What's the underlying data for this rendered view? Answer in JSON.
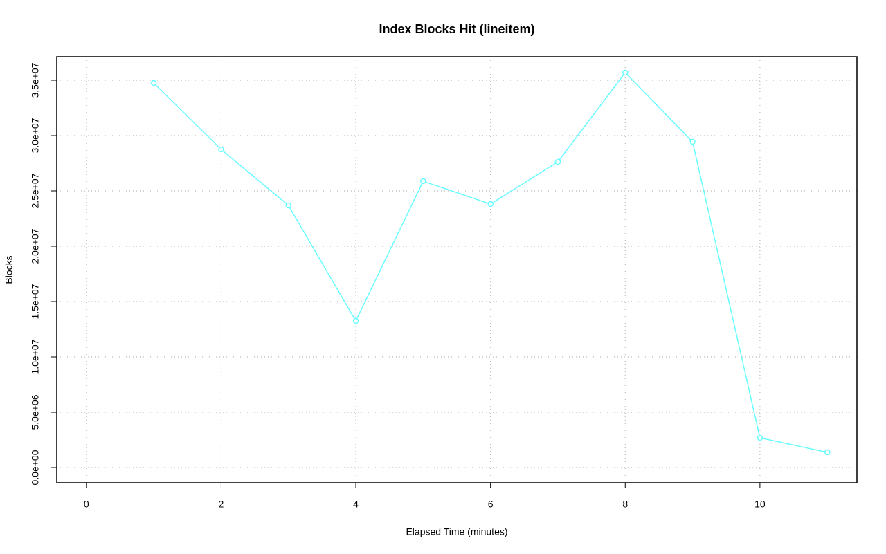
{
  "chart_data": {
    "type": "line",
    "title": "Index Blocks Hit (lineitem)",
    "x_label": "Elapsed Time (minutes)",
    "y_label": "Blocks",
    "x": [
      1,
      2,
      3,
      4,
      5,
      6,
      7,
      8,
      9,
      10,
      11
    ],
    "series": [
      {
        "name": "lineitem",
        "color": "#66ffff",
        "values": [
          34750000,
          28750000,
          23690000,
          13250000,
          25875000,
          23810000,
          27625000,
          35690000,
          29440000,
          2690000,
          1375000
        ]
      }
    ],
    "xlim": [
      -0.44,
      11.44
    ],
    "xticks": [
      0,
      2,
      4,
      6,
      8,
      10
    ],
    "ylim": [
      -1375000,
      37125000
    ],
    "yticks": [
      {
        "value": 0,
        "label": "0.0e+00"
      },
      {
        "value": 5000000,
        "label": "5.0e+06"
      },
      {
        "value": 10000000,
        "label": "1.0e+07"
      },
      {
        "value": 15000000,
        "label": "1.5e+07"
      },
      {
        "value": 20000000,
        "label": "2.0e+07"
      },
      {
        "value": 25000000,
        "label": "2.5e+07"
      },
      {
        "value": 30000000,
        "label": "3.0e+07"
      },
      {
        "value": 35000000,
        "label": "3.5e+07"
      }
    ],
    "grid": true
  }
}
